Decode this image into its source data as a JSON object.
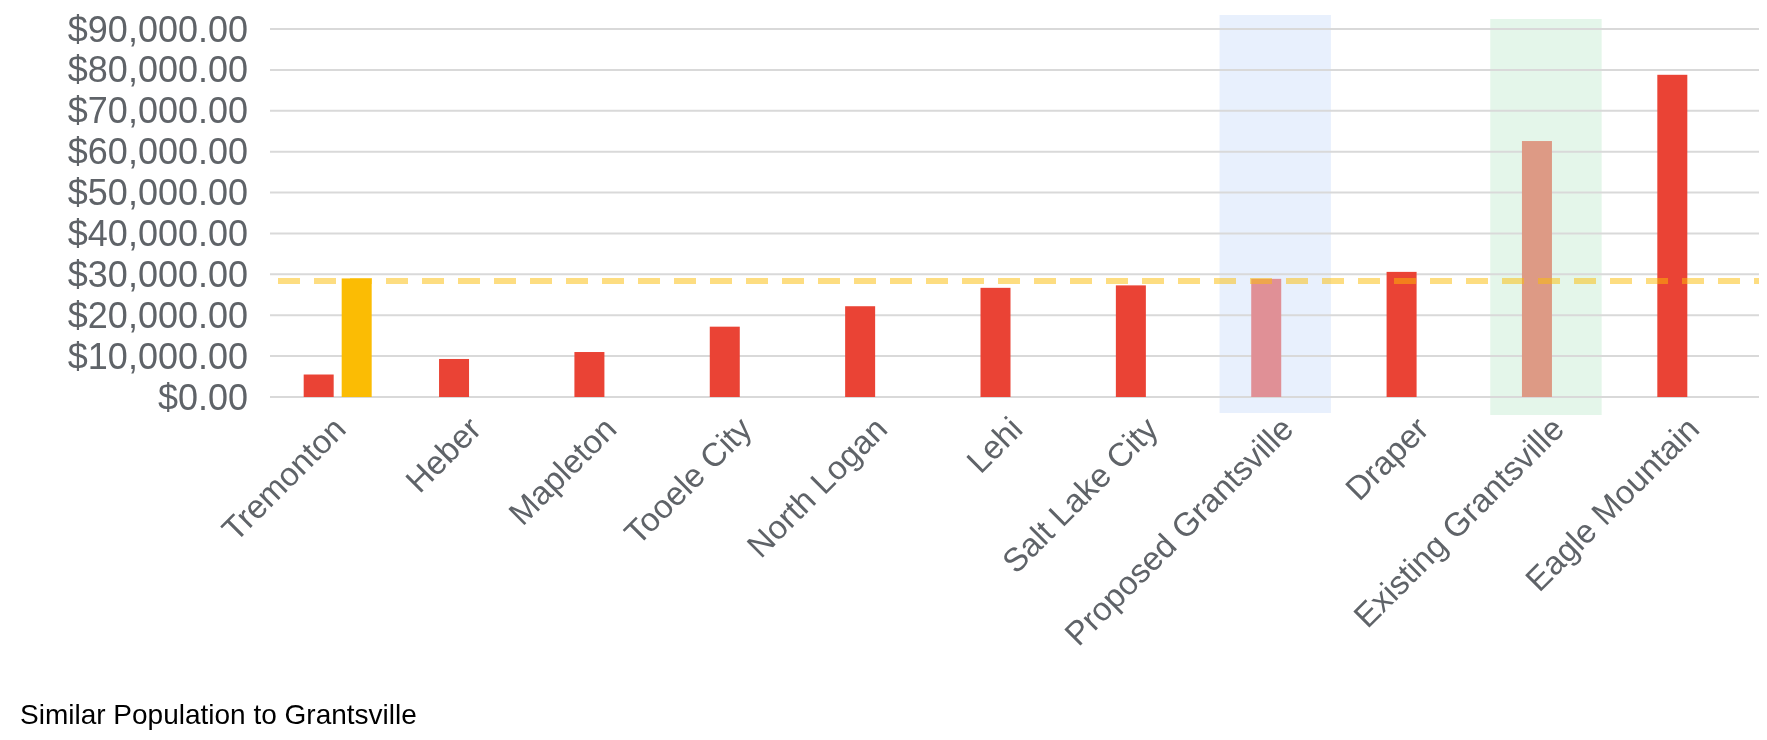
{
  "chart_data": {
    "type": "bar",
    "categories": [
      "Tremonton",
      "Heber",
      "Mapleton",
      "Tooele City",
      "North Logan",
      "Lehi",
      "Salt Lake City",
      "Proposed Grantsville",
      "Draper",
      "Existing Grantsville",
      "Eagle Mountain"
    ],
    "series": [
      {
        "colors": [
          "#ea4335",
          "#ea4335",
          "#ea4335",
          "#ea4335",
          "#ea4335",
          "#ea4335",
          "#ea4335",
          "#e09096",
          "#ea4335",
          "#dd9a85",
          "#ea4335"
        ],
        "values": [
          5500,
          9300,
          11000,
          17200,
          22200,
          26700,
          27300,
          28900,
          30600,
          62600,
          78800
        ]
      },
      {
        "color": "#fbbc04",
        "values": [
          29000,
          null,
          null,
          null,
          null,
          null,
          null,
          null,
          null,
          null,
          null
        ]
      }
    ],
    "ylim": [
      0,
      90000
    ],
    "yticks": [
      {
        "value": 0,
        "label": "$0.00"
      },
      {
        "value": 10000,
        "label": "$10,000.00"
      },
      {
        "value": 20000,
        "label": "$20,000.00"
      },
      {
        "value": 30000,
        "label": "$30,000.00"
      },
      {
        "value": 40000,
        "label": "$40,000.00"
      },
      {
        "value": 50000,
        "label": "$50,000.00"
      },
      {
        "value": 60000,
        "label": "$60,000.00"
      },
      {
        "value": 70000,
        "label": "$70,000.00"
      },
      {
        "value": 80000,
        "label": "$80,000.00"
      },
      {
        "value": 90000,
        "label": "$90,000.00"
      }
    ],
    "grid": "y",
    "ref_lines": [
      {
        "axis": "y",
        "value": 28400,
        "color": "#fbbc04",
        "line_style": "dashed"
      }
    ],
    "bands": [
      {
        "axis": "x",
        "from": "Proposed Grantsville",
        "to": "Proposed Grantsville",
        "color": "#e8f0fd"
      },
      {
        "axis": "x",
        "from": "Existing Grantsville",
        "to": "Existing Grantsville",
        "color": "#e4f6ea"
      }
    ],
    "annotations": [
      "Similar Population to Grantsville"
    ]
  }
}
